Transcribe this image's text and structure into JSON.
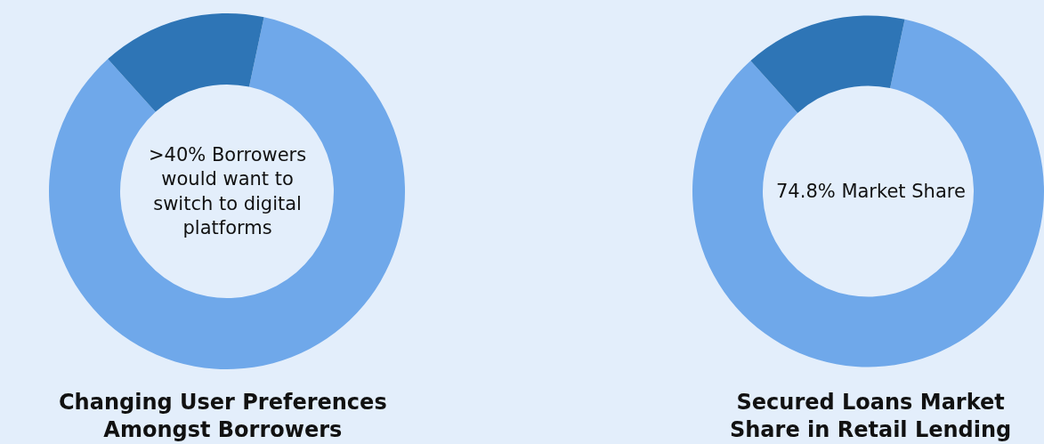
{
  "chart_data": [
    {
      "type": "donut",
      "title": "Changing User Preferences Amongst Borrowers",
      "categories": [
        null,
        null
      ],
      "values": [
        85,
        15
      ],
      "colors": [
        "#6fa8ea",
        "#2e75b6"
      ],
      "annotations": [
        ">40% Borrowers would want to switch to digital platforms"
      ],
      "legend": false
    },
    {
      "type": "donut",
      "title": "Secured Loans Market Share in Retail Lending",
      "categories": [
        null,
        null
      ],
      "values": [
        85,
        15
      ],
      "colors": [
        "#6fa8ea",
        "#2e75b6"
      ],
      "annotations": [
        "74.8% Market Share"
      ],
      "legend": false
    }
  ]
}
